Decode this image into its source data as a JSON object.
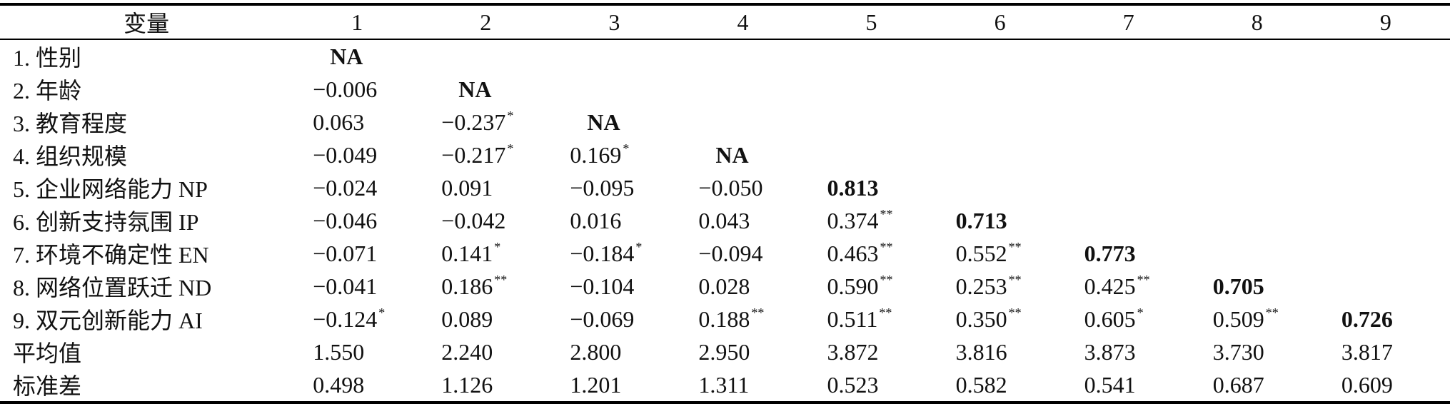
{
  "table": {
    "header": [
      "变量",
      "1",
      "2",
      "3",
      "4",
      "5",
      "6",
      "7",
      "8",
      "9"
    ],
    "rows": [
      {
        "label": "1. 性别",
        "cells": [
          {
            "v": "NA",
            "b": true,
            "s": ""
          },
          {
            "v": "",
            "b": false,
            "s": ""
          },
          {
            "v": "",
            "b": false,
            "s": ""
          },
          {
            "v": "",
            "b": false,
            "s": ""
          },
          {
            "v": "",
            "b": false,
            "s": ""
          },
          {
            "v": "",
            "b": false,
            "s": ""
          },
          {
            "v": "",
            "b": false,
            "s": ""
          },
          {
            "v": "",
            "b": false,
            "s": ""
          },
          {
            "v": "",
            "b": false,
            "s": ""
          }
        ]
      },
      {
        "label": "2. 年龄",
        "cells": [
          {
            "v": "−0.006",
            "b": false,
            "s": ""
          },
          {
            "v": "NA",
            "b": true,
            "s": ""
          },
          {
            "v": "",
            "b": false,
            "s": ""
          },
          {
            "v": "",
            "b": false,
            "s": ""
          },
          {
            "v": "",
            "b": false,
            "s": ""
          },
          {
            "v": "",
            "b": false,
            "s": ""
          },
          {
            "v": "",
            "b": false,
            "s": ""
          },
          {
            "v": "",
            "b": false,
            "s": ""
          },
          {
            "v": "",
            "b": false,
            "s": ""
          }
        ]
      },
      {
        "label": "3. 教育程度",
        "cells": [
          {
            "v": "0.063",
            "b": false,
            "s": ""
          },
          {
            "v": "−0.237",
            "b": false,
            "s": "*"
          },
          {
            "v": "NA",
            "b": true,
            "s": ""
          },
          {
            "v": "",
            "b": false,
            "s": ""
          },
          {
            "v": "",
            "b": false,
            "s": ""
          },
          {
            "v": "",
            "b": false,
            "s": ""
          },
          {
            "v": "",
            "b": false,
            "s": ""
          },
          {
            "v": "",
            "b": false,
            "s": ""
          },
          {
            "v": "",
            "b": false,
            "s": ""
          }
        ]
      },
      {
        "label": "4. 组织规模",
        "cells": [
          {
            "v": "−0.049",
            "b": false,
            "s": ""
          },
          {
            "v": "−0.217",
            "b": false,
            "s": "*"
          },
          {
            "v": "0.169",
            "b": false,
            "s": "*"
          },
          {
            "v": "NA",
            "b": true,
            "s": ""
          },
          {
            "v": "",
            "b": false,
            "s": ""
          },
          {
            "v": "",
            "b": false,
            "s": ""
          },
          {
            "v": "",
            "b": false,
            "s": ""
          },
          {
            "v": "",
            "b": false,
            "s": ""
          },
          {
            "v": "",
            "b": false,
            "s": ""
          }
        ]
      },
      {
        "label": "5. 企业网络能力 NP",
        "cells": [
          {
            "v": "−0.024",
            "b": false,
            "s": ""
          },
          {
            "v": "0.091",
            "b": false,
            "s": ""
          },
          {
            "v": "−0.095",
            "b": false,
            "s": ""
          },
          {
            "v": "−0.050",
            "b": false,
            "s": ""
          },
          {
            "v": "0.813",
            "b": true,
            "s": ""
          },
          {
            "v": "",
            "b": false,
            "s": ""
          },
          {
            "v": "",
            "b": false,
            "s": ""
          },
          {
            "v": "",
            "b": false,
            "s": ""
          },
          {
            "v": "",
            "b": false,
            "s": ""
          }
        ]
      },
      {
        "label": "6. 创新支持氛围 IP",
        "cells": [
          {
            "v": "−0.046",
            "b": false,
            "s": ""
          },
          {
            "v": "−0.042",
            "b": false,
            "s": ""
          },
          {
            "v": "0.016",
            "b": false,
            "s": ""
          },
          {
            "v": "0.043",
            "b": false,
            "s": ""
          },
          {
            "v": "0.374",
            "b": false,
            "s": "**"
          },
          {
            "v": "0.713",
            "b": true,
            "s": ""
          },
          {
            "v": "",
            "b": false,
            "s": ""
          },
          {
            "v": "",
            "b": false,
            "s": ""
          },
          {
            "v": "",
            "b": false,
            "s": ""
          }
        ]
      },
      {
        "label": "7. 环境不确定性 EN",
        "cells": [
          {
            "v": "−0.071",
            "b": false,
            "s": ""
          },
          {
            "v": "0.141",
            "b": false,
            "s": "*"
          },
          {
            "v": "−0.184",
            "b": false,
            "s": "*"
          },
          {
            "v": "−0.094",
            "b": false,
            "s": ""
          },
          {
            "v": "0.463",
            "b": false,
            "s": "**"
          },
          {
            "v": "0.552",
            "b": false,
            "s": "**"
          },
          {
            "v": "0.773",
            "b": true,
            "s": ""
          },
          {
            "v": "",
            "b": false,
            "s": ""
          },
          {
            "v": "",
            "b": false,
            "s": ""
          }
        ]
      },
      {
        "label": "8. 网络位置跃迁 ND",
        "cells": [
          {
            "v": "−0.041",
            "b": false,
            "s": ""
          },
          {
            "v": "0.186",
            "b": false,
            "s": "**"
          },
          {
            "v": "−0.104",
            "b": false,
            "s": ""
          },
          {
            "v": "0.028",
            "b": false,
            "s": ""
          },
          {
            "v": "0.590",
            "b": false,
            "s": "**"
          },
          {
            "v": "0.253",
            "b": false,
            "s": "**"
          },
          {
            "v": "0.425",
            "b": false,
            "s": "**"
          },
          {
            "v": "0.705",
            "b": true,
            "s": ""
          },
          {
            "v": "",
            "b": false,
            "s": ""
          }
        ]
      },
      {
        "label": "9. 双元创新能力 AI",
        "cells": [
          {
            "v": "−0.124",
            "b": false,
            "s": "*"
          },
          {
            "v": "0.089",
            "b": false,
            "s": ""
          },
          {
            "v": "−0.069",
            "b": false,
            "s": ""
          },
          {
            "v": "0.188",
            "b": false,
            "s": "**"
          },
          {
            "v": "0.511",
            "b": false,
            "s": "**"
          },
          {
            "v": "0.350",
            "b": false,
            "s": "**"
          },
          {
            "v": "0.605",
            "b": false,
            "s": "*"
          },
          {
            "v": "0.509",
            "b": false,
            "s": "**"
          },
          {
            "v": "0.726",
            "b": true,
            "s": ""
          }
        ]
      },
      {
        "label": "平均值",
        "cells": [
          {
            "v": "1.550",
            "b": false,
            "s": ""
          },
          {
            "v": "2.240",
            "b": false,
            "s": ""
          },
          {
            "v": "2.800",
            "b": false,
            "s": ""
          },
          {
            "v": "2.950",
            "b": false,
            "s": ""
          },
          {
            "v": "3.872",
            "b": false,
            "s": ""
          },
          {
            "v": "3.816",
            "b": false,
            "s": ""
          },
          {
            "v": "3.873",
            "b": false,
            "s": ""
          },
          {
            "v": "3.730",
            "b": false,
            "s": ""
          },
          {
            "v": "3.817",
            "b": false,
            "s": ""
          }
        ]
      },
      {
        "label": "标准差",
        "cells": [
          {
            "v": "0.498",
            "b": false,
            "s": ""
          },
          {
            "v": "1.126",
            "b": false,
            "s": ""
          },
          {
            "v": "1.201",
            "b": false,
            "s": ""
          },
          {
            "v": "1.311",
            "b": false,
            "s": ""
          },
          {
            "v": "0.523",
            "b": false,
            "s": ""
          },
          {
            "v": "0.582",
            "b": false,
            "s": ""
          },
          {
            "v": "0.541",
            "b": false,
            "s": ""
          },
          {
            "v": "0.687",
            "b": false,
            "s": ""
          },
          {
            "v": "0.609",
            "b": false,
            "s": ""
          }
        ]
      }
    ]
  }
}
